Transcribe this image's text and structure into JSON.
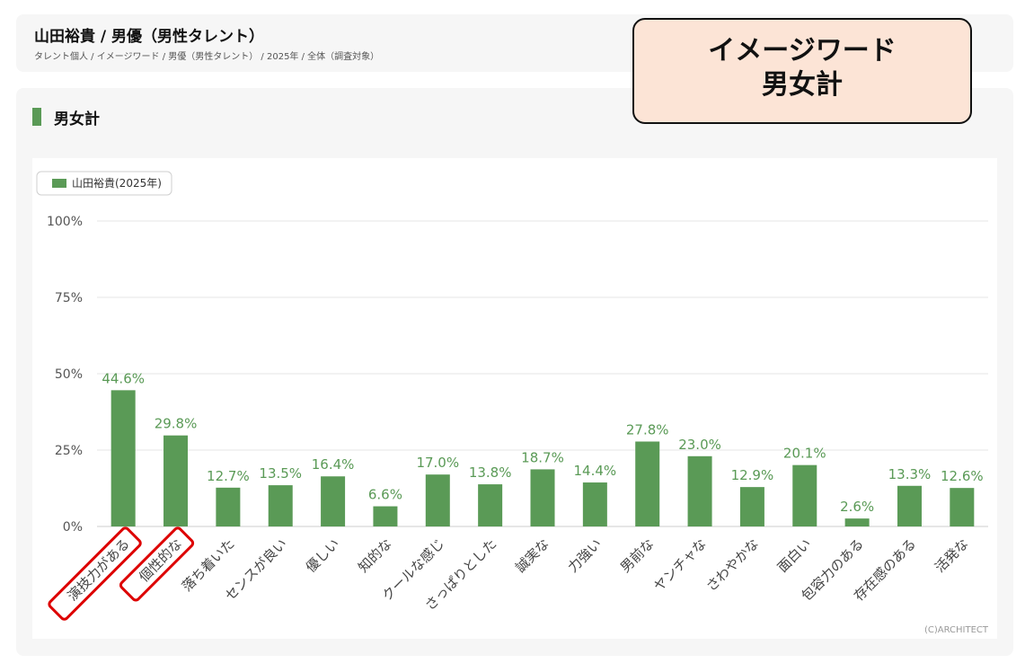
{
  "header": {
    "title": "山田裕貴 / 男優（男性タレント）",
    "breadcrumb": "タレント個人 / イメージワード / 男優（男性タレント） / 2025年 / 全体（調査対象）"
  },
  "section": {
    "title": "男女計"
  },
  "overlay": {
    "line1": "イメージワード",
    "line2": "男女計"
  },
  "colors": {
    "bar": "#5a9a56",
    "label": "#5a9a56",
    "highlight": "#dd0000"
  },
  "chart_data": {
    "type": "bar",
    "categories": [
      "演技力がある",
      "個性的な",
      "落ち着いた",
      "センスが良い",
      "優しい",
      "知的な",
      "クールな感じ",
      "さっぱりとした",
      "誠実な",
      "力強い",
      "男前な",
      "ヤンチャな",
      "さわやかな",
      "面白い",
      "包容力のある",
      "存在感のある",
      "活発な"
    ],
    "series": [
      {
        "name": "山田裕貴(2025年)",
        "values": [
          44.6,
          29.8,
          12.7,
          13.5,
          16.4,
          6.6,
          17.0,
          13.8,
          18.7,
          14.4,
          27.8,
          23.0,
          12.9,
          20.1,
          2.6,
          13.3,
          12.6
        ]
      }
    ],
    "value_labels": [
      "44.6%",
      "29.8%",
      "12.7%",
      "13.5%",
      "16.4%",
      "6.6%",
      "17.0%",
      "13.8%",
      "18.7%",
      "14.4%",
      "27.8%",
      "23.0%",
      "12.9%",
      "20.1%",
      "2.6%",
      "13.3%",
      "12.6%"
    ],
    "y_ticks": [
      "0%",
      "25%",
      "50%",
      "75%",
      "100%"
    ],
    "ylim": [
      0,
      100
    ],
    "legend_position": "top-left",
    "grid": true,
    "highlighted_categories": [
      "演技力がある",
      "個性的な"
    ],
    "credit": "(C)ARCHITECT"
  }
}
